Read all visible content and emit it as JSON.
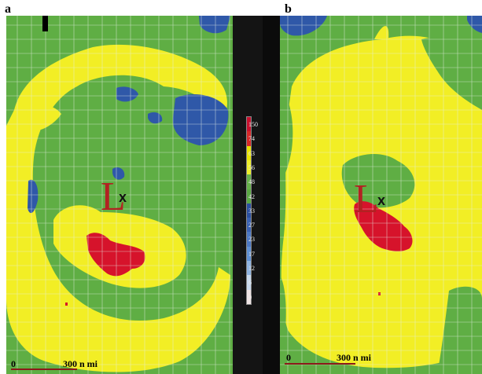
{
  "panels": [
    {
      "label": "a",
      "scale_zero": "0",
      "scale_text": "300 n mi",
      "low_label": "L",
      "center_label": "x"
    },
    {
      "label": "b",
      "scale_zero": "0",
      "scale_text": "300 n mi",
      "low_label": "L",
      "center_label": "x"
    }
  ],
  "legend": {
    "labels": [
      "150",
      "74",
      "63",
      "56",
      "48",
      "42",
      "33",
      "27",
      "23",
      "17",
      "12",
      "6",
      "0"
    ],
    "colors": [
      "#c8102e",
      "#d62828",
      "#e8e200",
      "#eded2a",
      "#66b04a",
      "#5aa844",
      "#2a4fa0",
      "#3a62b4",
      "#4c78c4",
      "#5f90d4",
      "#8fb4e2",
      "#c8d9ee",
      "#f0e4e4"
    ]
  },
  "colors": {
    "green": "#5fae44",
    "yellow": "#f2ee25",
    "blue": "#2f58a8",
    "red": "#d6132b",
    "grid": "#e6efe6",
    "scale_bar": "#8b1a1a"
  }
}
